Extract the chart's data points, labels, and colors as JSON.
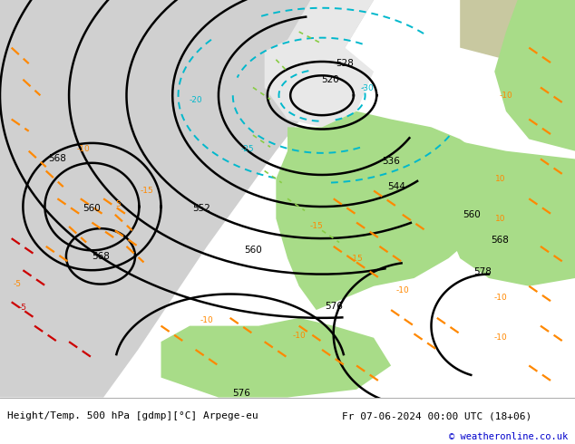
{
  "title_left": "Height/Temp. 500 hPa [gdmp][°C] Arpege-eu",
  "title_right": "Fr 07-06-2024 00:00 UTC (18+06)",
  "copyright": "© weatheronline.co.uk",
  "background_land": "#c8c8a0",
  "background_sea": "#d0d0d0",
  "background_snow": "#e8e8e8",
  "green_area": "#a8dc88",
  "label_color": "#000000",
  "title_color": "#000000",
  "copyright_color": "#0000cc",
  "fig_width": 6.34,
  "fig_height": 4.9,
  "dpi": 100,
  "black_contour_lw": 1.8,
  "cyan_contour_lw": 1.4,
  "orange_contour_lw": 1.6
}
